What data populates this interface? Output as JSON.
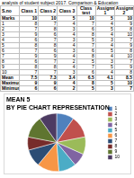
{
  "header": {
    "title": "analysis of student subject 2017. Comparison & Education"
  },
  "table": {
    "columns": [
      "S.no",
      "Class 1",
      "Class 2",
      "Class 3",
      "Class test",
      "Assignment 1",
      "Assignment 2"
    ],
    "rows": [
      [
        "Marks",
        10,
        10,
        5,
        10,
        5,
        10
      ],
      [
        1,
        8,
        7,
        4,
        7,
        4,
        9
      ],
      [
        2,
        7,
        8,
        3,
        6,
        5,
        8
      ],
      [
        3,
        9,
        6,
        4,
        8,
        4,
        10
      ],
      [
        4,
        6,
        7,
        3,
        5,
        3,
        7
      ],
      [
        5,
        8,
        8,
        4,
        7,
        4,
        9
      ],
      [
        6,
        7,
        6,
        3,
        6,
        5,
        8
      ],
      [
        7,
        9,
        9,
        4,
        8,
        4,
        10
      ],
      [
        8,
        6,
        7,
        2,
        5,
        3,
        7
      ],
      [
        9,
        8,
        8,
        4,
        7,
        5,
        9
      ],
      [
        10,
        7,
        7,
        3,
        6,
        4,
        8
      ],
      [
        "Mean",
        7.5,
        7.3,
        3.4,
        6.5,
        4.1,
        8.5
      ],
      [
        "Maximum",
        9,
        9,
        4,
        8,
        5,
        10
      ],
      [
        "Minimum",
        6,
        6,
        2,
        5,
        3,
        7
      ]
    ]
  },
  "chart_data": {
    "type": "pie",
    "title": [
      "MEAN 5",
      "BY PIE CHART REPRESENTATION"
    ],
    "categories": [
      "1",
      "2",
      "3",
      "4",
      "5",
      "6",
      "7",
      "8",
      "9",
      "10"
    ],
    "values": [
      4,
      5,
      4,
      3,
      4,
      5,
      4,
      3,
      5,
      4
    ],
    "colors": [
      "#4f81bd",
      "#c0504d",
      "#9bbb59",
      "#8064a2",
      "#4bacc6",
      "#f79646",
      "#2c4d75",
      "#772c2a",
      "#5f7530",
      "#4d3b62"
    ],
    "legend": "right"
  }
}
